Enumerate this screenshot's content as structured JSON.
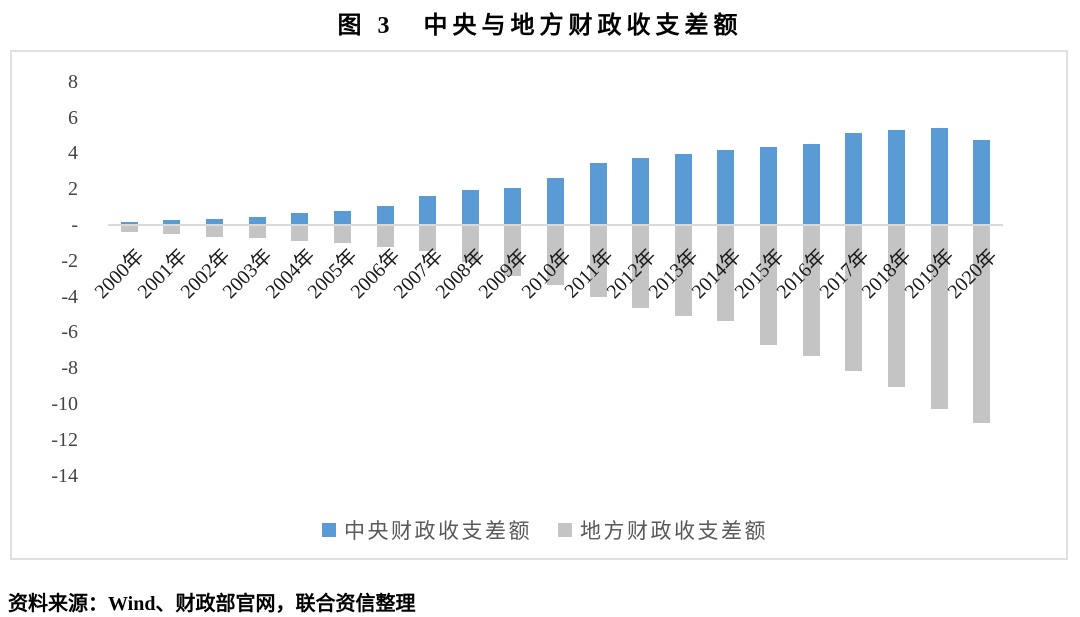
{
  "source_note": "资料来源：Wind、财政部官网，联合资信整理",
  "chart_data": {
    "type": "bar",
    "title": "图 3　中央与地方财政收支差额",
    "categories": [
      "2000年",
      "2001年",
      "2002年",
      "2003年",
      "2004年",
      "2005年",
      "2006年",
      "2007年",
      "2008年",
      "2009年",
      "2010年",
      "2011年",
      "2012年",
      "2013年",
      "2014年",
      "2015年",
      "2016年",
      "2017年",
      "2018年",
      "2019年",
      "2020年"
    ],
    "series": [
      {
        "key": "central",
        "name": "中央财政收支差额",
        "color": "#5B9BD5",
        "values": [
          0.15,
          0.28,
          0.36,
          0.44,
          0.66,
          0.78,
          1.05,
          1.63,
          1.93,
          2.06,
          2.65,
          3.48,
          3.74,
          3.97,
          4.19,
          4.37,
          4.5,
          5.13,
          5.33,
          5.42,
          4.77
        ]
      },
      {
        "key": "local",
        "name": "地方财政收支差额",
        "color": "#C4C4C4",
        "values": [
          -0.4,
          -0.53,
          -0.68,
          -0.74,
          -0.87,
          -1.01,
          -1.21,
          -1.46,
          -2.06,
          -2.84,
          -3.33,
          -4.02,
          -4.61,
          -5.07,
          -5.34,
          -6.73,
          -7.3,
          -8.18,
          -9.03,
          -10.26,
          -11.04
        ]
      }
    ],
    "y_ticks": [
      {
        "value": 8,
        "label": "8"
      },
      {
        "value": 6,
        "label": "6"
      },
      {
        "value": 4,
        "label": "4"
      },
      {
        "value": 2,
        "label": "2"
      },
      {
        "value": 0,
        "label": "-"
      },
      {
        "value": -2,
        "label": "-2"
      },
      {
        "value": -4,
        "label": "-4"
      },
      {
        "value": -6,
        "label": "-6"
      },
      {
        "value": -8,
        "label": "-8"
      },
      {
        "value": -10,
        "label": "-10"
      },
      {
        "value": -12,
        "label": "-12"
      },
      {
        "value": -14,
        "label": "-14"
      }
    ],
    "ylim": [
      -14,
      8
    ],
    "grid": false,
    "legend_position": "bottom",
    "zero_line_color": "#D9D9D9"
  }
}
